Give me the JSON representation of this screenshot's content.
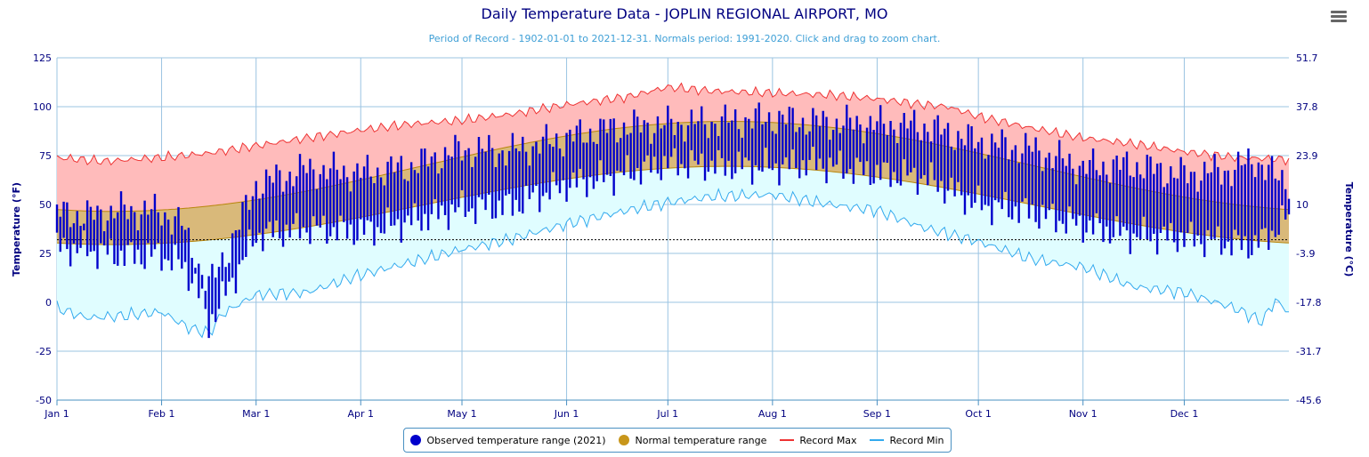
{
  "title": "Daily Temperature Data - JOPLIN REGIONAL AIRPORT, MO",
  "subtitle": "Period of Record - 1902-01-01 to 2021-12-31. Normals period: 1991-2020. Click and drag to zoom chart.",
  "menu_icon": "hamburger-menu-icon",
  "legend": {
    "observed": "Observed temperature range (2021)",
    "normal": "Normal temperature range",
    "record_max": "Record Max",
    "record_min": "Record Min"
  },
  "colors": {
    "observed": "#0000cc",
    "normal_fill": "#d9b97a",
    "normal_line": "#b8860b",
    "normal_dot": "#c8961b",
    "record_max_fill": "#ffbbbb",
    "record_max_line": "#ee3333",
    "record_min_fill": "#e0fdff",
    "record_min_line": "#33aaee",
    "freezing_line": "#000000",
    "axis": "#000080"
  },
  "chart_data": {
    "type": "area",
    "x_unit": "day of year 2021",
    "xlim": [
      1,
      366
    ],
    "x_ticks": [
      {
        "label": "Jan 1",
        "day": 1
      },
      {
        "label": "Feb 1",
        "day": 32
      },
      {
        "label": "Mar 1",
        "day": 60
      },
      {
        "label": "Apr 1",
        "day": 91
      },
      {
        "label": "May 1",
        "day": 121
      },
      {
        "label": "Jun 1",
        "day": 152
      },
      {
        "label": "Jul 1",
        "day": 182
      },
      {
        "label": "Aug 1",
        "day": 213
      },
      {
        "label": "Sep 1",
        "day": 244
      },
      {
        "label": "Oct 1",
        "day": 274
      },
      {
        "label": "Nov 1",
        "day": 305
      },
      {
        "label": "Dec 1",
        "day": 335
      }
    ],
    "ylabel": "Temperature (°F)",
    "ylim": [
      -50,
      125
    ],
    "y_ticks": [
      -50,
      -25,
      0,
      25,
      50,
      75,
      100,
      125
    ],
    "y2label": "Temperature (°C)",
    "y2_ticks": [
      "51.7",
      "37.8",
      "23.9",
      "10",
      "-3.9",
      "-17.8",
      "-31.7",
      "-45.6"
    ],
    "y2_tick_values_f": [
      125,
      100,
      75,
      50,
      25,
      0,
      -25,
      -50
    ],
    "freezing_line_f": 32,
    "grid": true,
    "legend_position": "bottom-center",
    "normal_model": {
      "mean": 59.5,
      "amp": 21.5,
      "half_range_base": 10,
      "half_range_amp": 1.5,
      "peak_day": 200
    },
    "record_max_anchors": [
      [
        1,
        74
      ],
      [
        15,
        72
      ],
      [
        32,
        74
      ],
      [
        45,
        76
      ],
      [
        60,
        80
      ],
      [
        75,
        84
      ],
      [
        91,
        88
      ],
      [
        105,
        91
      ],
      [
        121,
        93
      ],
      [
        135,
        96
      ],
      [
        152,
        101
      ],
      [
        170,
        105
      ],
      [
        182,
        110
      ],
      [
        195,
        108
      ],
      [
        213,
        107
      ],
      [
        230,
        106
      ],
      [
        244,
        104
      ],
      [
        258,
        101
      ],
      [
        265,
        100
      ],
      [
        274,
        95
      ],
      [
        290,
        89
      ],
      [
        305,
        84
      ],
      [
        320,
        81
      ],
      [
        335,
        77
      ],
      [
        350,
        74
      ],
      [
        366,
        73
      ]
    ],
    "record_min_anchors": [
      [
        1,
        -3
      ],
      [
        10,
        -8
      ],
      [
        20,
        -7
      ],
      [
        32,
        -5
      ],
      [
        40,
        -13
      ],
      [
        46,
        -16
      ],
      [
        50,
        -6
      ],
      [
        60,
        4
      ],
      [
        75,
        5
      ],
      [
        91,
        14
      ],
      [
        105,
        20
      ],
      [
        121,
        27
      ],
      [
        135,
        32
      ],
      [
        152,
        40
      ],
      [
        170,
        47
      ],
      [
        182,
        51
      ],
      [
        195,
        54
      ],
      [
        213,
        55
      ],
      [
        230,
        50
      ],
      [
        244,
        47
      ],
      [
        258,
        38
      ],
      [
        274,
        31
      ],
      [
        290,
        22
      ],
      [
        305,
        18
      ],
      [
        320,
        8
      ],
      [
        335,
        5
      ],
      [
        350,
        -3
      ],
      [
        358,
        -10
      ],
      [
        362,
        1
      ],
      [
        366,
        -5
      ]
    ],
    "observed_2021_anchors": [
      [
        1,
        28,
        46
      ],
      [
        10,
        27,
        44
      ],
      [
        20,
        24,
        47
      ],
      [
        32,
        24,
        46
      ],
      [
        38,
        19,
        40
      ],
      [
        42,
        10,
        22
      ],
      [
        46,
        -11,
        8
      ],
      [
        52,
        8,
        28
      ],
      [
        60,
        34,
        60
      ],
      [
        75,
        38,
        68
      ],
      [
        91,
        36,
        66
      ],
      [
        105,
        41,
        69
      ],
      [
        121,
        48,
        78
      ],
      [
        135,
        49,
        77
      ],
      [
        152,
        60,
        84
      ],
      [
        165,
        64,
        89
      ],
      [
        182,
        71,
        91
      ],
      [
        195,
        70,
        92
      ],
      [
        213,
        69,
        94
      ],
      [
        225,
        71,
        92
      ],
      [
        244,
        66,
        91
      ],
      [
        258,
        64,
        90
      ],
      [
        274,
        50,
        82
      ],
      [
        290,
        46,
        78
      ],
      [
        305,
        39,
        69
      ],
      [
        320,
        34,
        70
      ],
      [
        335,
        33,
        65
      ],
      [
        350,
        30,
        68
      ],
      [
        356,
        29,
        73
      ],
      [
        362,
        37,
        64
      ],
      [
        366,
        44,
        62
      ]
    ]
  }
}
